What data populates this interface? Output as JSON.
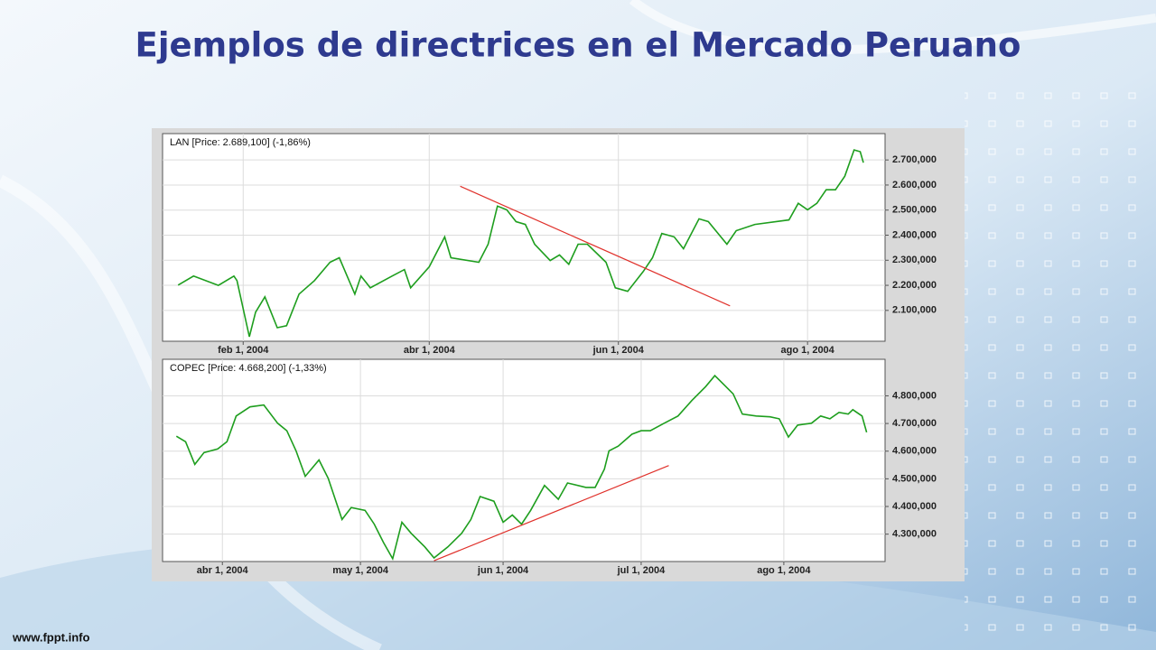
{
  "title": "Ejemplos de directrices en el Mercado Peruano",
  "footer": "www.fppt.info",
  "chart_data": [
    {
      "type": "line",
      "x": [
        "2004-01-11",
        "2004-01-16",
        "2004-01-24",
        "2004-01-29",
        "2004-01-30",
        "2004-02-03",
        "2004-02-05",
        "2004-02-08",
        "2004-02-12",
        "2004-02-15",
        "2004-02-19",
        "2004-02-24",
        "2004-02-29",
        "2004-03-03",
        "2004-03-08",
        "2004-03-10",
        "2004-03-13",
        "2004-03-20",
        "2004-03-24",
        "2004-03-26",
        "2004-04-01",
        "2004-04-06",
        "2004-04-08",
        "2004-04-17",
        "2004-04-20",
        "2004-04-23",
        "2004-04-26",
        "2004-04-29",
        "2004-05-02",
        "2004-05-05",
        "2004-05-10",
        "2004-05-13",
        "2004-05-16",
        "2004-05-19",
        "2004-05-22",
        "2004-05-28",
        "2004-05-31",
        "2004-06-04",
        "2004-06-09",
        "2004-06-12",
        "2004-06-15",
        "2004-06-19",
        "2004-06-22",
        "2004-06-27",
        "2004-06-30",
        "2004-07-06",
        "2004-07-09",
        "2004-07-15",
        "2004-07-26",
        "2004-07-29",
        "2004-08-01",
        "2004-08-04",
        "2004-08-07",
        "2004-08-10",
        "2004-08-13",
        "2004-08-16",
        "2004-08-18",
        "2004-08-19"
      ],
      "series": [
        {
          "name": "LAN [Price: 2.689,100] (-1,86%)",
          "color": "#1e9e1e",
          "values": [
            2201,
            2237,
            2200,
            2237,
            2219,
            1995,
            2093,
            2154,
            2031,
            2039,
            2165,
            2219,
            2292,
            2310,
            2165,
            2237,
            2190,
            2237,
            2263,
            2190,
            2274,
            2393,
            2310,
            2292,
            2364,
            2516,
            2501,
            2454,
            2443,
            2364,
            2299,
            2321,
            2284,
            2364,
            2364,
            2292,
            2190,
            2176,
            2255,
            2310,
            2407,
            2393,
            2346,
            2465,
            2454,
            2364,
            2418,
            2443,
            2461,
            2527,
            2501,
            2527,
            2581,
            2581,
            2635,
            2740,
            2733,
            2689
          ]
        }
      ],
      "trendline": {
        "color": "#e0312b",
        "x": [
          "2004-04-11",
          "2004-07-07"
        ],
        "values": [
          2595,
          2118
        ]
      },
      "xlim": [
        "2004-01-06",
        "2004-08-26"
      ],
      "xticks": [
        {
          "value": "2004-02-01",
          "label": "feb 1, 2004"
        },
        {
          "value": "2004-04-01",
          "label": "abr 1, 2004"
        },
        {
          "value": "2004-06-01",
          "label": "jun 1, 2004"
        },
        {
          "value": "2004-08-01",
          "label": "ago 1, 2004"
        }
      ],
      "ylim": [
        1977,
        2805
      ],
      "yticks": [
        {
          "value": 2100,
          "label": "2.100,000"
        },
        {
          "value": 2200,
          "label": "2.200,000"
        },
        {
          "value": 2300,
          "label": "2.300,000"
        },
        {
          "value": 2400,
          "label": "2.400,000"
        },
        {
          "value": 2500,
          "label": "2.500,000"
        },
        {
          "value": 2600,
          "label": "2.600,000"
        },
        {
          "value": 2700,
          "label": "2.700,000"
        }
      ],
      "grid": true
    },
    {
      "type": "line",
      "x": [
        "2004-03-22",
        "2004-03-24",
        "2004-03-26",
        "2004-03-28",
        "2004-03-31",
        "2004-04-02",
        "2004-04-04",
        "2004-04-07",
        "2004-04-10",
        "2004-04-13",
        "2004-04-15",
        "2004-04-17",
        "2004-04-19",
        "2004-04-22",
        "2004-04-24",
        "2004-04-27",
        "2004-04-29",
        "2004-05-02",
        "2004-05-04",
        "2004-05-06",
        "2004-05-08",
        "2004-05-10",
        "2004-05-12",
        "2004-05-15",
        "2004-05-17",
        "2004-05-20",
        "2004-05-23",
        "2004-05-25",
        "2004-05-27",
        "2004-05-30",
        "2004-06-01",
        "2004-06-03",
        "2004-06-05",
        "2004-06-07",
        "2004-06-10",
        "2004-06-13",
        "2004-06-15",
        "2004-06-19",
        "2004-06-21",
        "2004-06-23",
        "2004-06-24",
        "2004-06-26",
        "2004-06-29",
        "2004-07-01",
        "2004-07-03",
        "2004-07-06",
        "2004-07-09",
        "2004-07-12",
        "2004-07-15",
        "2004-07-17",
        "2004-07-19",
        "2004-07-21",
        "2004-07-23",
        "2004-07-26",
        "2004-07-29",
        "2004-07-31",
        "2004-08-02",
        "2004-08-04",
        "2004-08-07",
        "2004-08-09",
        "2004-08-11",
        "2004-08-13",
        "2004-08-15",
        "2004-08-16",
        "2004-08-18",
        "2004-08-19"
      ],
      "series": [
        {
          "name": "COPEC [Price: 4.668,200] (-1,33%)",
          "color": "#1e9e1e",
          "values": [
            4654,
            4634,
            4552,
            4595,
            4608,
            4634,
            4727,
            4760,
            4767,
            4701,
            4674,
            4601,
            4509,
            4568,
            4502,
            4353,
            4396,
            4386,
            4336,
            4270,
            4211,
            4343,
            4303,
            4254,
            4214,
            4254,
            4303,
            4353,
            4436,
            4419,
            4343,
            4369,
            4336,
            4386,
            4476,
            4426,
            4485,
            4469,
            4469,
            4535,
            4601,
            4618,
            4661,
            4674,
            4674,
            4701,
            4727,
            4783,
            4833,
            4873,
            4840,
            4807,
            4734,
            4727,
            4724,
            4717,
            4651,
            4694,
            4701,
            4727,
            4717,
            4740,
            4734,
            4750,
            4727,
            4668
          ]
        }
      ],
      "trendline": {
        "color": "#e0312b",
        "x": [
          "2004-05-17",
          "2004-07-07"
        ],
        "values": [
          4204,
          4548
        ]
      },
      "xlim": [
        "2004-03-19",
        "2004-08-23"
      ],
      "xticks": [
        {
          "value": "2004-04-01",
          "label": "abr 1, 2004"
        },
        {
          "value": "2004-05-01",
          "label": "may 1, 2004"
        },
        {
          "value": "2004-06-01",
          "label": "jun 1, 2004"
        },
        {
          "value": "2004-07-01",
          "label": "jul 1, 2004"
        },
        {
          "value": "2004-08-01",
          "label": "ago 1, 2004"
        }
      ],
      "ylim": [
        4201,
        4932
      ],
      "yticks": [
        {
          "value": 4300,
          "label": "4.300,000"
        },
        {
          "value": 4400,
          "label": "4.400,000"
        },
        {
          "value": 4500,
          "label": "4.500,000"
        },
        {
          "value": 4600,
          "label": "4.600,000"
        },
        {
          "value": 4700,
          "label": "4.700,000"
        },
        {
          "value": 4800,
          "label": "4.800,000"
        }
      ],
      "grid": true
    }
  ]
}
